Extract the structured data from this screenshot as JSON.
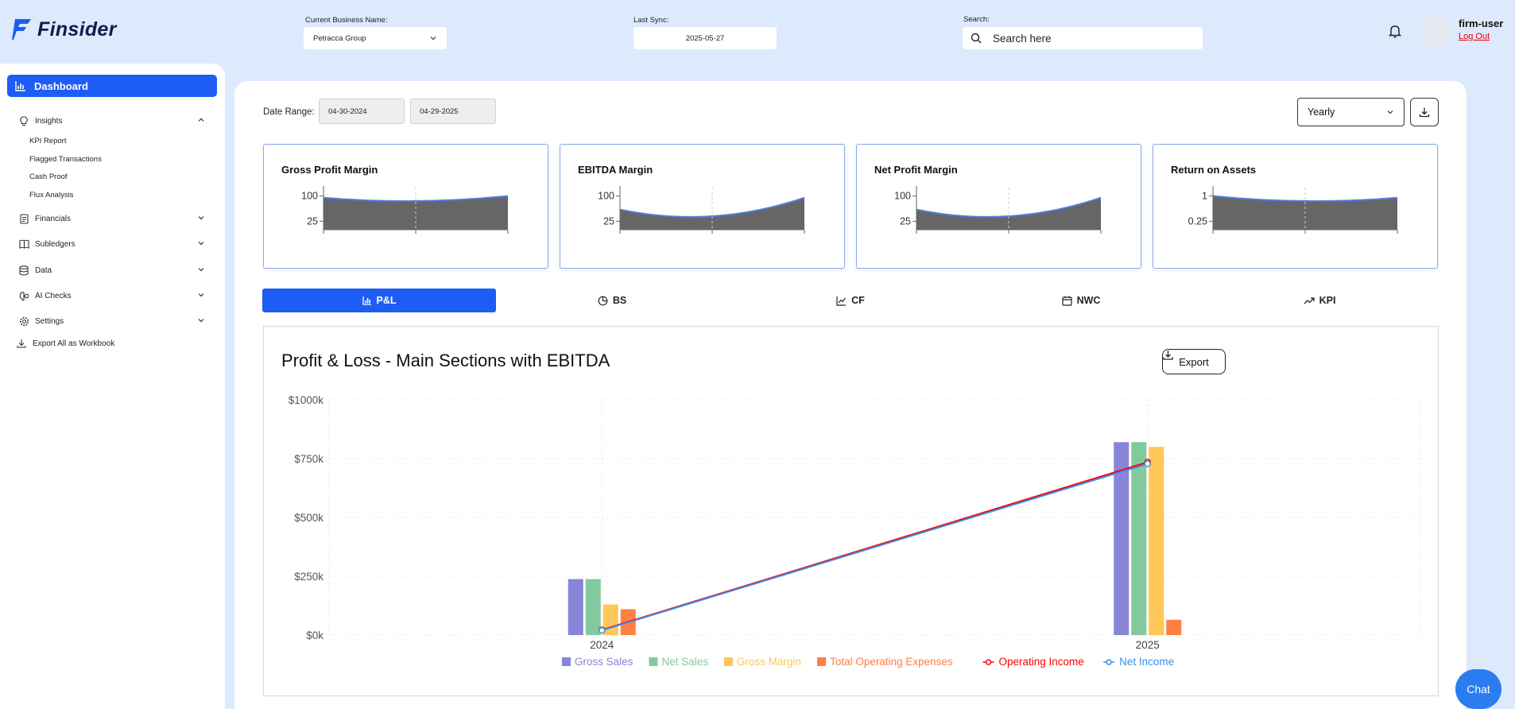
{
  "app": {
    "name": "Finsider"
  },
  "header": {
    "business_label": "Current Business Name:",
    "business_value": "Petracca Group",
    "sync_label": "Last Sync:",
    "sync_value": "2025-05-27",
    "search_label": "Search:",
    "search_placeholder": "Search here",
    "user_name": "firm-user",
    "logout_label": "Log Out"
  },
  "sidebar": {
    "dashboard_label": "Dashboard",
    "insights_label": "Insights",
    "insights_items": [
      "KPI Report",
      "Flagged Transactions",
      "Cash Proof",
      "Flux Analysis"
    ],
    "financials_label": "Financials",
    "subledgers_label": "Subledgers",
    "data_label": "Data",
    "ai_checks_label": "AI Checks",
    "settings_label": "Settings",
    "export_label": "Export All as Workbook"
  },
  "filters": {
    "date_range_label": "Date Range:",
    "start_date": "04-30-2024",
    "end_date": "04-29-2025",
    "period": "Yearly"
  },
  "kpi_cards": [
    {
      "title": "Gross Profit Margin",
      "ticks": [
        "100",
        "25"
      ]
    },
    {
      "title": "EBITDA Margin",
      "ticks": [
        "100",
        "25"
      ]
    },
    {
      "title": "Net Profit Margin",
      "ticks": [
        "100",
        "25"
      ]
    },
    {
      "title": "Return on Assets",
      "ticks": [
        "1",
        "0.25"
      ]
    }
  ],
  "tabs": [
    "P&L",
    "BS",
    "CF",
    "NWC",
    "KPI"
  ],
  "chart_panel": {
    "title": "Profit & Loss - Main Sections with EBITDA",
    "export_label": "Export"
  },
  "chat": {
    "label": "Chat"
  },
  "colors": {
    "accent": "#1e5df5",
    "gross_sales": "#8884d8",
    "net_sales": "#82ca9d",
    "gross_margin": "#ffc658",
    "total_operating_expenses": "#ff8042",
    "operating_income": "#ff0000",
    "net_income": "#3a8fe8"
  },
  "chart_data": {
    "type": "bar",
    "categories": [
      "2024",
      "2025"
    ],
    "y_ticks": [
      "$0k",
      "$250k",
      "$500k",
      "$750k",
      "$1000k"
    ],
    "ylim": [
      0,
      1000
    ],
    "grid": true,
    "legend_position": "bottom",
    "series": [
      {
        "name": "Gross Sales",
        "type": "bar",
        "values": [
          238,
          820
        ]
      },
      {
        "name": "Net Sales",
        "type": "bar",
        "values": [
          238,
          820
        ]
      },
      {
        "name": "Gross Margin",
        "type": "bar",
        "values": [
          130,
          800
        ]
      },
      {
        "name": "Total Operating Expenses",
        "type": "bar",
        "values": [
          110,
          65
        ]
      },
      {
        "name": "Operating Income",
        "type": "line",
        "values": [
          22,
          735
        ]
      },
      {
        "name": "Net Income",
        "type": "line",
        "values": [
          20,
          728
        ]
      }
    ]
  },
  "kpi_sparklines": [
    {
      "ylim": [
        0,
        125
      ],
      "values": [
        95,
        85,
        100
      ]
    },
    {
      "ylim": [
        0,
        125
      ],
      "values": [
        60,
        40,
        95
      ]
    },
    {
      "ylim": [
        0,
        125
      ],
      "values": [
        60,
        40,
        95
      ]
    },
    {
      "ylim": [
        0,
        1.25
      ],
      "values": [
        1.0,
        0.85,
        0.95
      ]
    }
  ]
}
